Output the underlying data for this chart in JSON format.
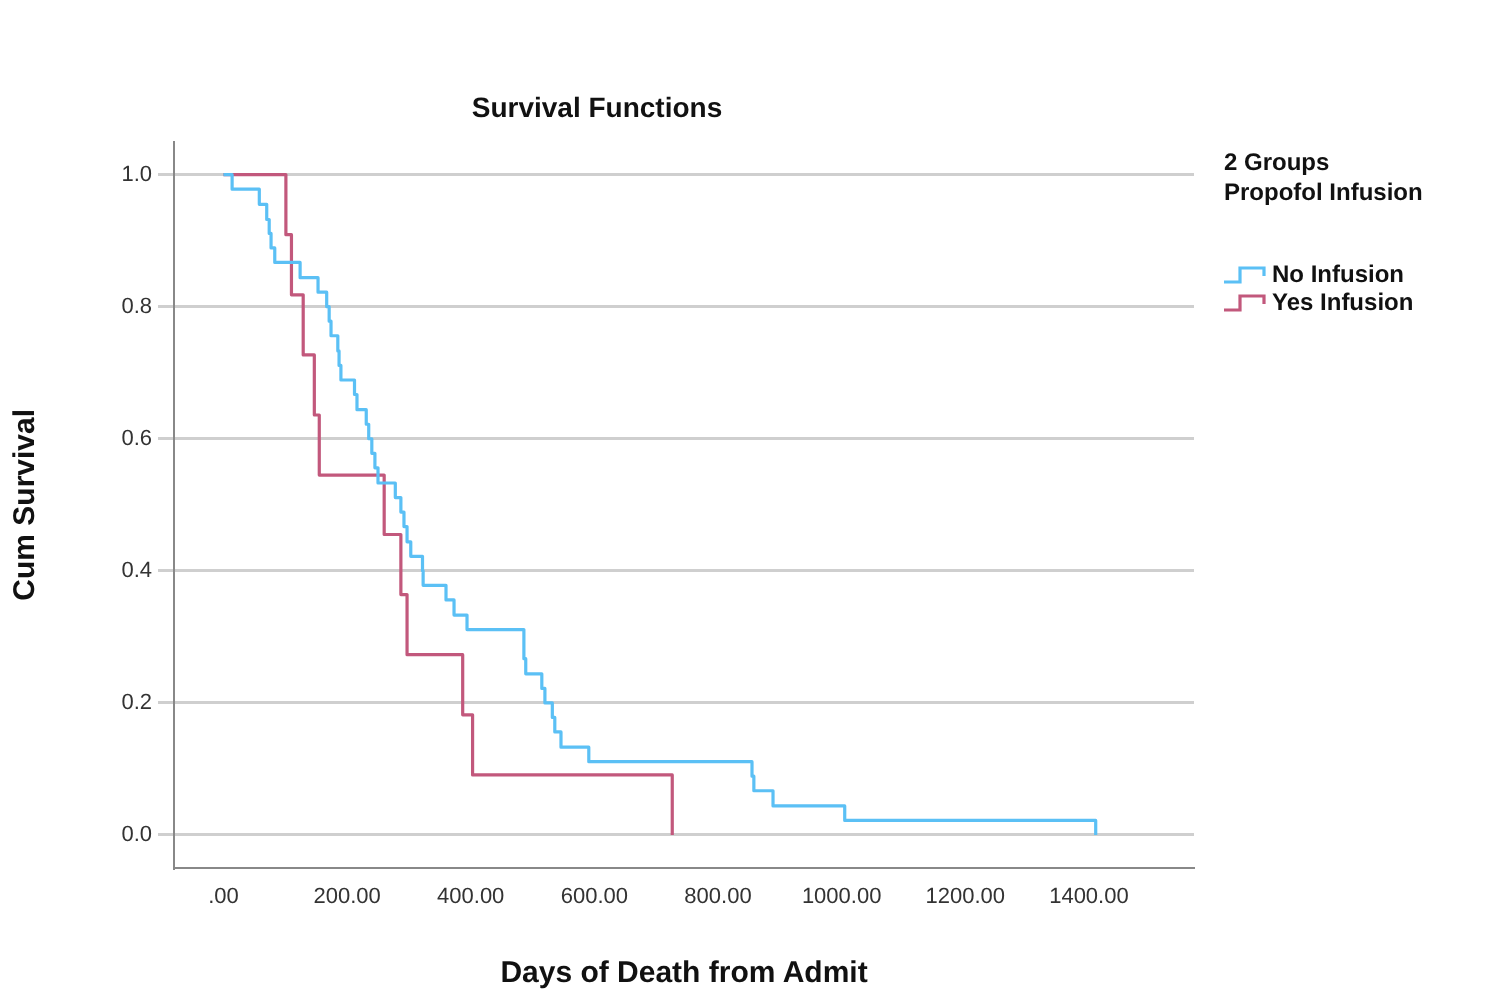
{
  "chart_data": {
    "type": "step",
    "title": "Survival Functions",
    "xlabel": "Days of Death from Admit",
    "ylabel": "Cum Survival",
    "legend_title": "2 Groups\nPropofol Infusion",
    "legend": "right",
    "grid": "y",
    "xlim": [
      -80,
      1570
    ],
    "ylim": [
      -0.05,
      1.05
    ],
    "xticks": [
      {
        "value": 0,
        "label": ".00"
      },
      {
        "value": 200,
        "label": "200.00"
      },
      {
        "value": 400,
        "label": "400.00"
      },
      {
        "value": 600,
        "label": "600.00"
      },
      {
        "value": 800,
        "label": "800.00"
      },
      {
        "value": 1000,
        "label": "1000.00"
      },
      {
        "value": 1200,
        "label": "1200.00"
      },
      {
        "value": 1400,
        "label": "1400.00"
      }
    ],
    "yticks": [
      {
        "value": 0,
        "label": "0.0"
      },
      {
        "value": 0.2,
        "label": "0.2"
      },
      {
        "value": 0.4,
        "label": "0.4"
      },
      {
        "value": 0.6,
        "label": "0.6"
      },
      {
        "value": 0.8,
        "label": "0.8"
      },
      {
        "value": 1,
        "label": "1.0"
      }
    ],
    "series": [
      {
        "name": "No Infusion",
        "color": "#5bc0f5",
        "x": [
          0,
          14,
          58,
          70,
          74,
          77,
          83,
          124,
          153,
          167,
          171,
          174,
          185,
          187,
          190,
          212,
          216,
          231,
          235,
          240,
          245,
          250,
          278,
          287,
          292,
          297,
          303,
          322,
          323,
          360,
          373,
          394,
          486,
          489,
          515,
          520,
          532,
          536,
          546,
          591,
          855,
          858,
          889,
          1005,
          1411
        ],
        "values": [
          1,
          0.978,
          0.955,
          0.932,
          0.911,
          0.889,
          0.867,
          0.844,
          0.822,
          0.8,
          0.778,
          0.756,
          0.733,
          0.711,
          0.689,
          0.667,
          0.644,
          0.622,
          0.6,
          0.578,
          0.556,
          0.533,
          0.511,
          0.489,
          0.467,
          0.444,
          0.422,
          0.4,
          0.378,
          0.356,
          0.333,
          0.311,
          0.267,
          0.244,
          0.222,
          0.2,
          0.178,
          0.156,
          0.133,
          0.111,
          0.089,
          0.067,
          0.044,
          0.022,
          0
        ]
      },
      {
        "name": "Yes Infusion",
        "color": "#c2587c",
        "x": [
          0,
          101,
          110,
          129,
          147,
          155,
          260,
          287,
          297,
          387,
          403,
          726
        ],
        "values": [
          1,
          0.909,
          0.818,
          0.727,
          0.636,
          0.545,
          0.455,
          0.364,
          0.273,
          0.182,
          0.091,
          0
        ]
      }
    ]
  }
}
